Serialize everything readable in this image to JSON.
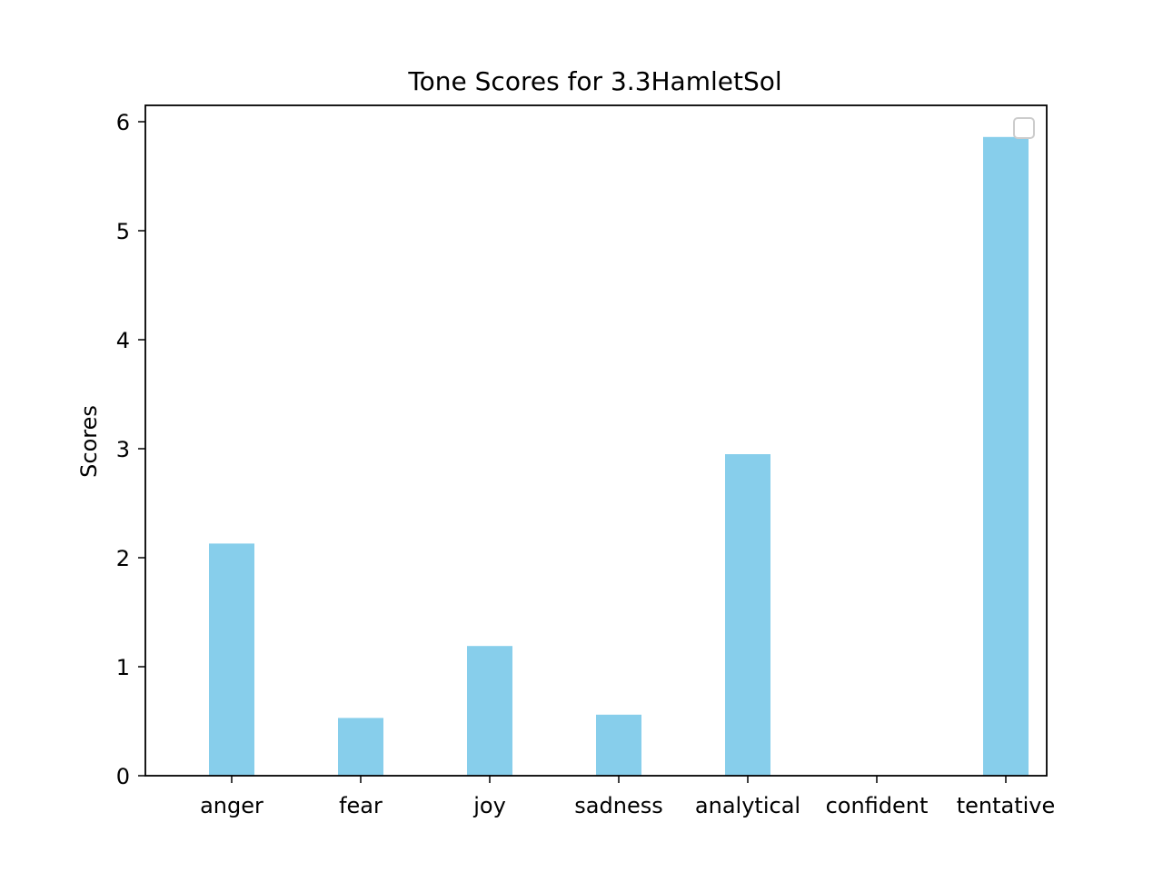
{
  "chart_data": {
    "type": "bar",
    "title": "Tone Scores for 3.3HamletSol",
    "xlabel": "",
    "ylabel": "Scores",
    "categories": [
      "anger",
      "fear",
      "joy",
      "sadness",
      "analytical",
      "confident",
      "tentative"
    ],
    "values": [
      2.13,
      0.53,
      1.19,
      0.56,
      2.95,
      0,
      5.86
    ],
    "ylim": [
      0,
      6.15
    ],
    "yticks": [
      "0",
      "1",
      "2",
      "3",
      "4",
      "5",
      "6"
    ],
    "bar_color": "#87ceeb",
    "legend": {
      "placement": "top-right",
      "entries": []
    },
    "grid": false
  }
}
